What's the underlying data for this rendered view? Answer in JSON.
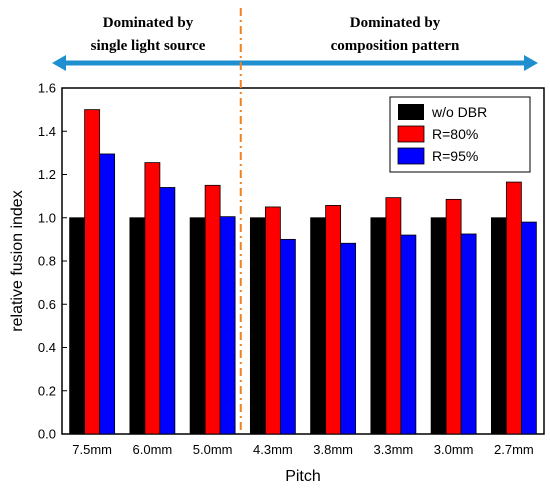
{
  "chart_data": {
    "type": "bar",
    "categories": [
      "7.5mm",
      "6.0mm",
      "5.0mm",
      "4.3mm",
      "3.8mm",
      "3.3mm",
      "3.0mm",
      "2.7mm"
    ],
    "series": [
      {
        "name": "w/o DBR",
        "color": "#000000",
        "values": [
          1.0,
          1.0,
          1.0,
          1.0,
          1.0,
          1.0,
          1.0,
          1.0
        ]
      },
      {
        "name": "R=80%",
        "color": "#ff0000",
        "values": [
          1.5,
          1.255,
          1.15,
          1.05,
          1.057,
          1.093,
          1.085,
          1.165
        ]
      },
      {
        "name": "R=95%",
        "color": "#0000ff",
        "values": [
          1.295,
          1.14,
          1.005,
          0.9,
          0.882,
          0.92,
          0.925,
          0.98
        ]
      }
    ],
    "xlabel": "Pitch",
    "ylabel": "relative fusion index",
    "ylim": [
      0,
      1.6
    ],
    "yticks": [
      0.0,
      0.2,
      0.4,
      0.6,
      0.8,
      1.0,
      1.2,
      1.4,
      1.6
    ],
    "grid": false,
    "legend_position": "top-right",
    "annotations": {
      "left_label_line1": "Dominated by",
      "left_label_line2": "single light source",
      "right_label_line1": "Dominated by",
      "right_label_line2": "composition pattern",
      "divider_after_category": "5.0mm",
      "arrow_color": "#1f8fd0",
      "divider_color": "#f08020"
    }
  }
}
